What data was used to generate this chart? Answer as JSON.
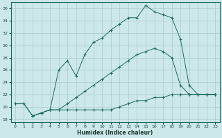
{
  "xlabel": "Humidex (Indice chaleur)",
  "background_color": "#cce8e8",
  "grid_color": "#aacccc",
  "line_color": "#1a6b5a",
  "xlim": [
    -0.5,
    23.5
  ],
  "ylim": [
    17.5,
    37.0
  ],
  "yticks": [
    18,
    20,
    22,
    24,
    26,
    28,
    30,
    32,
    34,
    36
  ],
  "xticks": [
    0,
    1,
    2,
    3,
    4,
    5,
    6,
    7,
    8,
    9,
    10,
    11,
    12,
    13,
    14,
    15,
    16,
    17,
    18,
    19,
    20,
    21,
    22,
    23
  ],
  "line1_x": [
    0,
    1,
    2,
    3,
    4,
    5,
    6,
    7,
    8,
    9,
    10,
    11,
    12,
    13,
    14,
    15,
    16,
    17,
    18,
    19,
    20,
    21,
    22,
    23
  ],
  "line1_y": [
    20.5,
    20.5,
    18.5,
    19.0,
    19.5,
    19.5,
    19.5,
    19.5,
    19.5,
    19.5,
    19.5,
    19.5,
    20.0,
    20.5,
    21.0,
    21.0,
    21.5,
    21.5,
    22.0,
    22.0,
    22.0,
    22.0,
    22.0,
    22.0
  ],
  "line2_x": [
    0,
    1,
    2,
    3,
    4,
    5,
    6,
    7,
    8,
    9,
    10,
    11,
    12,
    13,
    14,
    15,
    16,
    17,
    18,
    19,
    20,
    21,
    22,
    23
  ],
  "line2_y": [
    20.5,
    20.5,
    18.5,
    19.0,
    19.5,
    26.0,
    27.5,
    25.0,
    28.5,
    30.5,
    31.2,
    32.5,
    33.5,
    34.5,
    34.5,
    36.5,
    35.5,
    35.0,
    34.5,
    31.0,
    23.5,
    22.0,
    22.0,
    22.0
  ],
  "line3_x": [
    2,
    3,
    4,
    5,
    6,
    7,
    8,
    9,
    10,
    11,
    12,
    13,
    14,
    15,
    16,
    17,
    18,
    19,
    20,
    21,
    22,
    23
  ],
  "line3_y": [
    18.5,
    19.0,
    19.5,
    19.5,
    20.5,
    21.5,
    22.5,
    23.5,
    24.5,
    25.5,
    26.5,
    27.5,
    28.5,
    29.0,
    29.5,
    29.0,
    28.0,
    23.5,
    22.0,
    22.0,
    22.0,
    22.0
  ]
}
